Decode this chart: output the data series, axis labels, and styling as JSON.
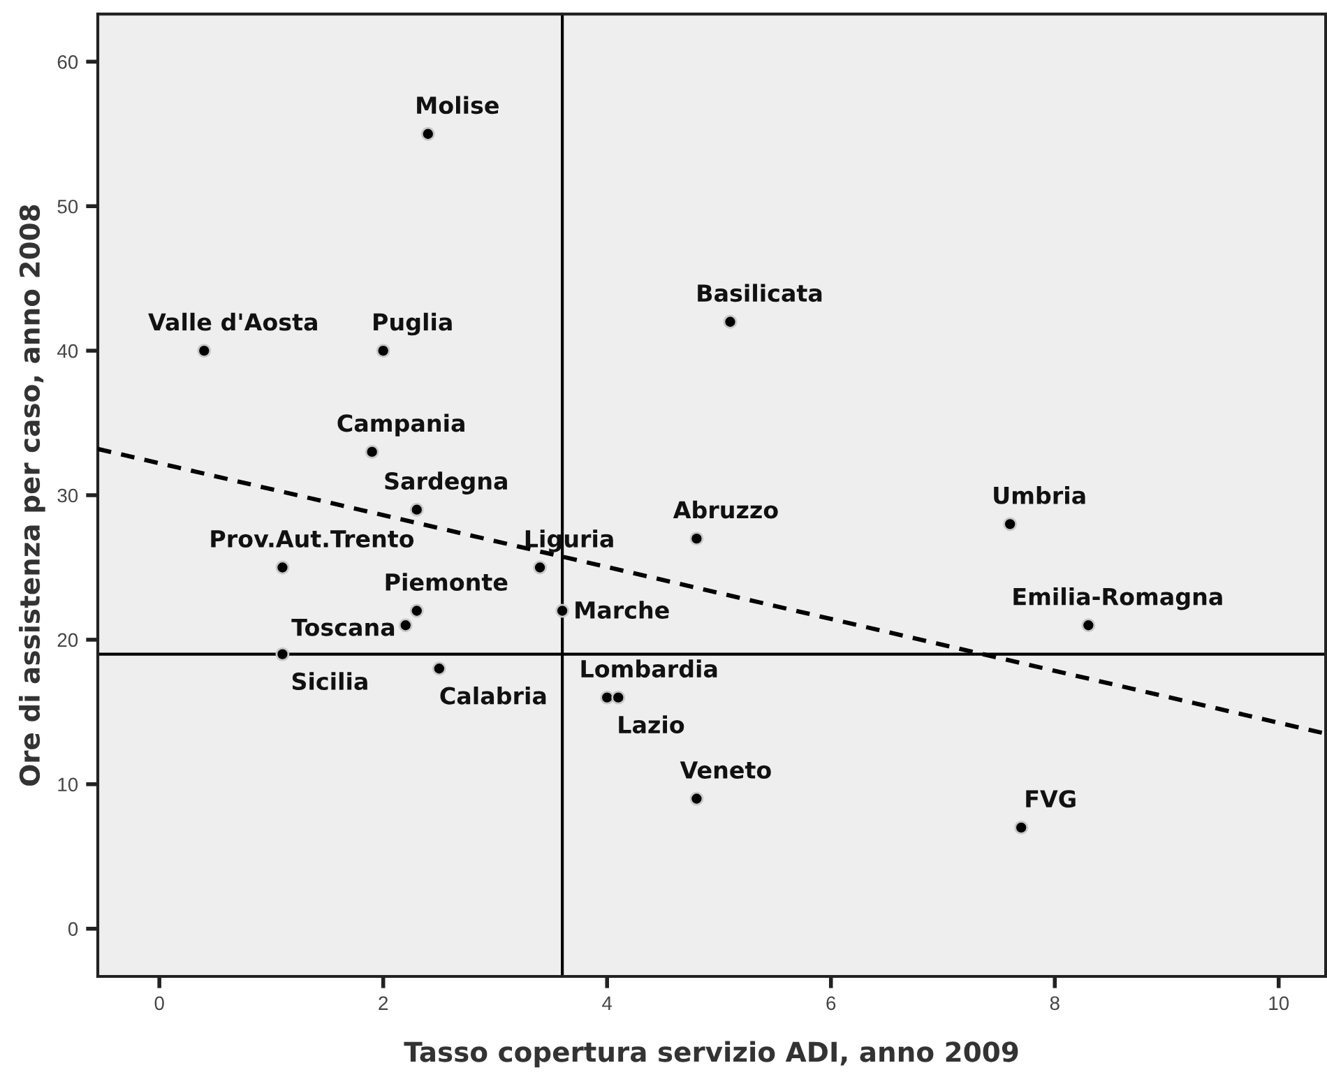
{
  "chart_data": {
    "type": "scatter",
    "xlabel": "Tasso copertura servizio ADI, anno 2009",
    "ylabel": "Ore di assistenza per caso, anno 2008",
    "xlim": [
      -0.55,
      10.42
    ],
    "xticks": [
      0,
      2,
      4,
      6,
      8,
      10
    ],
    "ylim": [
      -3.3,
      63.3
    ],
    "yticks": [
      0,
      10,
      20,
      30,
      40,
      50,
      60
    ],
    "grid": false,
    "legend": false,
    "marker": "circle",
    "series": [
      {
        "color": "#000000",
        "x": [
          2.4,
          5.1,
          0.4,
          2.0,
          1.9,
          2.3,
          7.6,
          4.8,
          1.1,
          3.4,
          2.3,
          3.6,
          2.2,
          8.3,
          1.1,
          2.5,
          4.0,
          4.1,
          4.8,
          7.7
        ],
        "values": [
          55,
          42,
          40,
          40,
          33,
          29,
          28,
          27,
          25,
          25,
          22,
          22,
          21,
          21,
          19,
          18,
          16,
          16,
          9,
          7
        ]
      },
      {
        "type": "line",
        "color": "#000000",
        "line_style": "dashed",
        "marker": "none",
        "x": [
          -0.55,
          10.42
        ],
        "values": [
          33.2,
          13.5
        ]
      }
    ],
    "ref_lines": [
      {
        "axis": "x",
        "value": 3.6,
        "color": "#000000"
      },
      {
        "axis": "y",
        "value": 19,
        "color": "#000000"
      }
    ],
    "annotations": [
      {
        "text": "Molise",
        "x": 2.4,
        "y": 55
      },
      {
        "text": "Basilicata",
        "x": 5.1,
        "y": 42
      },
      {
        "text": "Valle d'Aosta",
        "x": 0.4,
        "y": 40
      },
      {
        "text": "Puglia",
        "x": 2.0,
        "y": 40
      },
      {
        "text": "Campania",
        "x": 1.9,
        "y": 33
      },
      {
        "text": "Sardegna",
        "x": 2.3,
        "y": 29
      },
      {
        "text": "Umbria",
        "x": 7.6,
        "y": 28
      },
      {
        "text": "Abruzzo",
        "x": 4.8,
        "y": 27
      },
      {
        "text": "Prov.Aut.Trento",
        "x": 1.1,
        "y": 25
      },
      {
        "text": "Liguria",
        "x": 3.4,
        "y": 25
      },
      {
        "text": "Piemonte",
        "x": 2.3,
        "y": 22
      },
      {
        "text": "Marche",
        "x": 3.6,
        "y": 22
      },
      {
        "text": "Toscana",
        "x": 2.2,
        "y": 21
      },
      {
        "text": "Emilia-Romagna",
        "x": 8.3,
        "y": 21
      },
      {
        "text": "Sicilia",
        "x": 1.1,
        "y": 19
      },
      {
        "text": "Calabria",
        "x": 2.5,
        "y": 18
      },
      {
        "text": "Lombardia",
        "x": 4.0,
        "y": 16
      },
      {
        "text": "Lazio",
        "x": 4.1,
        "y": 16
      },
      {
        "text": "Veneto",
        "x": 4.8,
        "y": 9
      },
      {
        "text": "FVG",
        "x": 7.7,
        "y": 7
      }
    ]
  }
}
